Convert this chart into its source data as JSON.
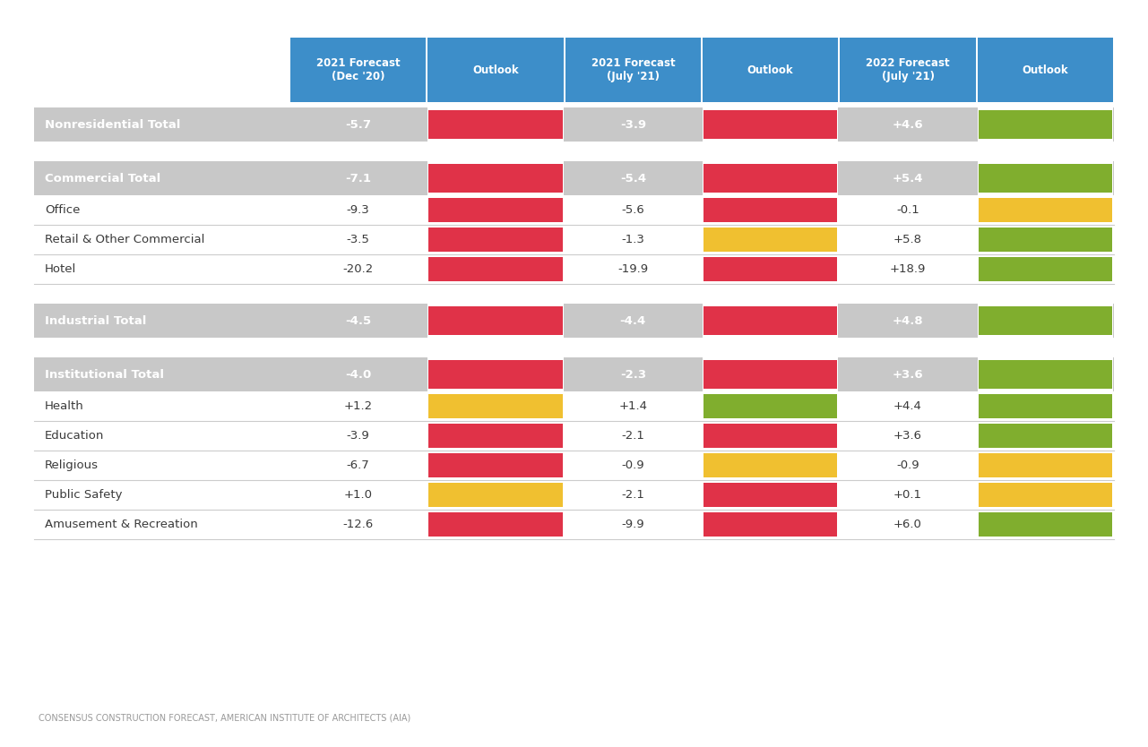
{
  "header_bg": "#3d8ec9",
  "header_text_color": "#ffffff",
  "background_color": "#f5f5f5",
  "col_headers": [
    "2021 Forecast\n(Dec '20)",
    "Outlook",
    "2021 Forecast\n(July '21)",
    "Outlook",
    "2022 Forecast\n(July '21)",
    "Outlook"
  ],
  "colors": {
    "red": "#e03248",
    "yellow": "#f0c030",
    "green": "#80ae2e"
  },
  "sections": [
    {
      "rows": [
        {
          "label": "Nonresidential Total",
          "is_total": true,
          "values": [
            "-5.7",
            "-3.9",
            "+4.6"
          ],
          "outlook_colors": [
            "red",
            "red",
            "green"
          ]
        }
      ]
    },
    {
      "rows": [
        {
          "label": "Commercial Total",
          "is_total": true,
          "values": [
            "-7.1",
            "-5.4",
            "+5.4"
          ],
          "outlook_colors": [
            "red",
            "red",
            "green"
          ]
        },
        {
          "label": "Office",
          "is_total": false,
          "values": [
            "-9.3",
            "-5.6",
            "-0.1"
          ],
          "outlook_colors": [
            "red",
            "red",
            "yellow"
          ]
        },
        {
          "label": "Retail & Other Commercial",
          "is_total": false,
          "values": [
            "-3.5",
            "-1.3",
            "+5.8"
          ],
          "outlook_colors": [
            "red",
            "yellow",
            "green"
          ]
        },
        {
          "label": "Hotel",
          "is_total": false,
          "values": [
            "-20.2",
            "-19.9",
            "+18.9"
          ],
          "outlook_colors": [
            "red",
            "red",
            "green"
          ]
        }
      ]
    },
    {
      "rows": [
        {
          "label": "Industrial Total",
          "is_total": true,
          "values": [
            "-4.5",
            "-4.4",
            "+4.8"
          ],
          "outlook_colors": [
            "red",
            "red",
            "green"
          ]
        }
      ]
    },
    {
      "rows": [
        {
          "label": "Institutional Total",
          "is_total": true,
          "values": [
            "-4.0",
            "-2.3",
            "+3.6"
          ],
          "outlook_colors": [
            "red",
            "red",
            "green"
          ]
        },
        {
          "label": "Health",
          "is_total": false,
          "values": [
            "+1.2",
            "+1.4",
            "+4.4"
          ],
          "outlook_colors": [
            "yellow",
            "green",
            "green"
          ]
        },
        {
          "label": "Education",
          "is_total": false,
          "values": [
            "-3.9",
            "-2.1",
            "+3.6"
          ],
          "outlook_colors": [
            "red",
            "red",
            "green"
          ]
        },
        {
          "label": "Religious",
          "is_total": false,
          "values": [
            "-6.7",
            "-0.9",
            "-0.9"
          ],
          "outlook_colors": [
            "red",
            "yellow",
            "yellow"
          ]
        },
        {
          "label": "Public Safety",
          "is_total": false,
          "values": [
            "+1.0",
            "-2.1",
            "+0.1"
          ],
          "outlook_colors": [
            "yellow",
            "red",
            "yellow"
          ]
        },
        {
          "label": "Amusement & Recreation",
          "is_total": false,
          "values": [
            "-12.6",
            "-9.9",
            "+6.0"
          ],
          "outlook_colors": [
            "red",
            "red",
            "green"
          ]
        }
      ]
    }
  ],
  "footnote": "CONSENSUS CONSTRUCTION FORECAST, AMERICAN INSTITUTE OF ARCHITECTS (AIA)"
}
